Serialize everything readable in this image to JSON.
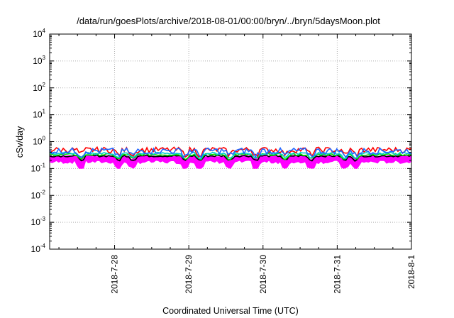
{
  "chart_data": {
    "type": "line",
    "title": "/data/run/goesPlots/archive/2018-08-01/00:00/bryn/../bryn/5daysMoon.plot",
    "xlabel": "Coordinated Universal Time (UTC)",
    "ylabel": "cSv/day",
    "yscale": "log",
    "ylim": [
      0.0001,
      10000
    ],
    "xlim": [
      "2018-07-27T03:00",
      "2018-08-01T00:00"
    ],
    "y_ticks": [
      {
        "base": "10",
        "exp": "-4"
      },
      {
        "base": "10",
        "exp": "-3"
      },
      {
        "base": "10",
        "exp": "-2"
      },
      {
        "base": "10",
        "exp": "-1"
      },
      {
        "base": "10",
        "exp": "0"
      },
      {
        "base": "10",
        "exp": "1"
      },
      {
        "base": "10",
        "exp": "2"
      },
      {
        "base": "10",
        "exp": "3"
      },
      {
        "base": "10",
        "exp": "4"
      }
    ],
    "x_ticks": [
      {
        "label": "2018-7-28",
        "day": 1
      },
      {
        "label": "2018-7-29",
        "day": 2
      },
      {
        "label": "2018-7-30",
        "day": 3
      },
      {
        "label": "2018-7-31",
        "day": 4
      },
      {
        "label": "2018-8-1",
        "day": 5
      }
    ],
    "grid": true,
    "legend": "none",
    "series": [
      {
        "color": "#ff00ff",
        "band": true,
        "lo": [
          0.15,
          0.2
        ],
        "hi": [
          0.27,
          0.32
        ],
        "dips": 0.1
      },
      {
        "color": "#000000",
        "base": [
          0.27,
          0.32
        ]
      },
      {
        "color": "#00dd00",
        "base": [
          0.3,
          0.36
        ]
      },
      {
        "color": "#00cccc",
        "base": [
          0.33,
          0.4
        ]
      },
      {
        "color": "#ff0000",
        "base": [
          0.38,
          0.62
        ]
      },
      {
        "color": "#1e64ff",
        "base": [
          0.34,
          0.58
        ]
      }
    ],
    "dip_days": [
      0.55,
      1.05,
      1.25,
      1.95,
      2.15,
      2.55,
      2.9,
      3.3,
      3.65,
      4.1,
      4.25
    ]
  }
}
